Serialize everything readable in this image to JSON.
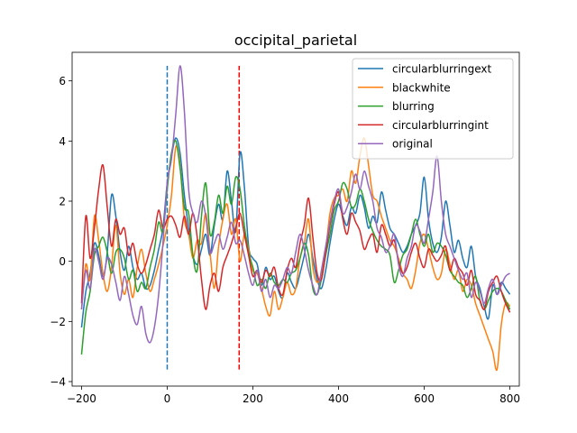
{
  "chart_data": {
    "type": "line",
    "title": "occipital_parietal",
    "xlabel": "",
    "ylabel": "",
    "xlim": [
      -222,
      822
    ],
    "ylim": [
      -4.15,
      6.95
    ],
    "xticks": [
      -200,
      0,
      200,
      400,
      600,
      800
    ],
    "yticks": [
      -4,
      -2,
      0,
      2,
      4,
      6
    ],
    "grid": false,
    "legend_position": "top-right",
    "vlines": [
      {
        "x": 0,
        "y0": -3.6,
        "y1": 6.5,
        "color": "#1f77b4",
        "style": "dashed"
      },
      {
        "x": 168,
        "y0": -3.6,
        "y1": 6.5,
        "color": "#ff0000",
        "style": "dashed"
      }
    ],
    "series": [
      {
        "name": "circularblurringext",
        "color": "#1f77b4",
        "x": [
          -200,
          -190,
          -180,
          -170,
          -160,
          -150,
          -140,
          -130,
          -120,
          -110,
          -100,
          -90,
          -80,
          -70,
          -60,
          -50,
          -40,
          -30,
          -20,
          -10,
          0,
          10,
          20,
          30,
          40,
          50,
          60,
          70,
          80,
          90,
          100,
          110,
          120,
          130,
          140,
          150,
          160,
          170,
          180,
          190,
          200,
          210,
          220,
          230,
          240,
          250,
          260,
          270,
          280,
          290,
          300,
          310,
          320,
          330,
          340,
          350,
          360,
          370,
          380,
          390,
          400,
          410,
          420,
          430,
          440,
          450,
          460,
          470,
          480,
          490,
          500,
          510,
          520,
          530,
          540,
          550,
          560,
          570,
          580,
          590,
          600,
          610,
          620,
          630,
          640,
          650,
          660,
          670,
          680,
          690,
          700,
          710,
          720,
          730,
          740,
          750,
          760,
          770,
          780,
          790,
          800
        ],
        "y": [
          -2.2,
          -1.0,
          -0.4,
          0.6,
          0.2,
          -0.5,
          0.3,
          2.2,
          1.5,
          0.3,
          -0.3,
          0.5,
          -0.2,
          -0.6,
          -0.4,
          -0.9,
          -0.8,
          -0.3,
          0.4,
          1.1,
          2.6,
          3.5,
          4.1,
          3.6,
          2.2,
          1.1,
          0.2,
          -0.1,
          0.4,
          0.9,
          0.2,
          1.2,
          1.9,
          1.4,
          3.0,
          2.0,
          1.0,
          3.6,
          2.5,
          0.5,
          0.1,
          -0.1,
          -0.8,
          -0.2,
          -0.6,
          -0.5,
          -1.0,
          -1.2,
          -0.4,
          -0.7,
          -0.9,
          -0.4,
          0.2,
          0.9,
          0.1,
          -0.6,
          -0.9,
          -0.3,
          0.6,
          1.4,
          1.9,
          1.5,
          1.2,
          1.8,
          1.6,
          2.2,
          1.8,
          1.1,
          1.5,
          1.3,
          2.3,
          1.7,
          1.1,
          0.9,
          0.6,
          0.3,
          0.5,
          0.9,
          1.2,
          1.6,
          2.8,
          1.4,
          0.6,
          0.3,
          0.8,
          2.0,
          1.2,
          0.3,
          0.7,
          0.1,
          -0.2,
          0.5,
          -0.5,
          -0.9,
          -1.5,
          -1.9,
          -0.8,
          -1.1,
          -0.7,
          -0.9,
          -1.1
        ]
      },
      {
        "name": "blackwhite",
        "color": "#ff7f0e",
        "x": [
          -200,
          -190,
          -180,
          -170,
          -160,
          -150,
          -140,
          -130,
          -120,
          -110,
          -100,
          -90,
          -80,
          -70,
          -60,
          -50,
          -40,
          -30,
          -20,
          -10,
          0,
          10,
          20,
          30,
          40,
          50,
          60,
          70,
          80,
          90,
          100,
          110,
          120,
          130,
          140,
          150,
          160,
          170,
          180,
          190,
          200,
          210,
          220,
          230,
          240,
          250,
          260,
          270,
          280,
          290,
          300,
          310,
          320,
          330,
          340,
          350,
          360,
          370,
          380,
          390,
          400,
          410,
          420,
          430,
          440,
          450,
          460,
          470,
          480,
          490,
          500,
          510,
          520,
          530,
          540,
          550,
          560,
          570,
          580,
          590,
          600,
          610,
          620,
          630,
          640,
          650,
          660,
          670,
          680,
          690,
          700,
          710,
          720,
          730,
          740,
          750,
          760,
          770,
          780,
          790,
          800
        ],
        "y": [
          -1.6,
          -0.1,
          -0.6,
          1.5,
          0.7,
          -0.4,
          -1.0,
          -0.2,
          1.2,
          -0.4,
          -1.1,
          -0.6,
          -1.2,
          -0.2,
          0.4,
          -0.4,
          -1.0,
          -0.6,
          -0.1,
          0.5,
          1.2,
          2.2,
          3.8,
          3.2,
          1.4,
          0.9,
          0.1,
          0.7,
          0.6,
          1.6,
          0.3,
          -0.9,
          0.5,
          1.4,
          1.9,
          0.9,
          1.4,
          0.0,
          0.9,
          0.4,
          -0.3,
          -0.4,
          -0.9,
          -1.5,
          -1.8,
          -1.0,
          -1.6,
          -1.2,
          -0.7,
          -1.1,
          -0.9,
          0.1,
          0.6,
          1.4,
          -0.2,
          -0.7,
          -0.4,
          0.4,
          1.6,
          2.1,
          2.2,
          2.4,
          2.0,
          3.0,
          2.6,
          3.5,
          4.1,
          3.2,
          2.2,
          2.0,
          1.5,
          1.1,
          0.7,
          0.5,
          0.1,
          -0.4,
          -0.6,
          -0.9,
          -0.3,
          0.6,
          0.9,
          0.4,
          -0.2,
          -0.6,
          -0.4,
          0.4,
          -0.1,
          -0.6,
          -0.3,
          -1.0,
          -0.6,
          -0.8,
          -1.4,
          -1.8,
          -2.2,
          -2.6,
          -3.0,
          -3.6,
          -2.1,
          -1.4,
          -1.5
        ]
      },
      {
        "name": "blurring",
        "color": "#2ca02c",
        "x": [
          -200,
          -190,
          -180,
          -170,
          -160,
          -150,
          -140,
          -130,
          -120,
          -110,
          -100,
          -90,
          -80,
          -70,
          -60,
          -50,
          -40,
          -30,
          -20,
          -10,
          0,
          10,
          20,
          30,
          40,
          50,
          60,
          70,
          80,
          90,
          100,
          110,
          120,
          130,
          140,
          150,
          160,
          170,
          180,
          190,
          200,
          210,
          220,
          230,
          240,
          250,
          260,
          270,
          280,
          290,
          300,
          310,
          320,
          330,
          340,
          350,
          360,
          370,
          380,
          390,
          400,
          410,
          420,
          430,
          440,
          450,
          460,
          470,
          480,
          490,
          500,
          510,
          520,
          530,
          540,
          550,
          560,
          570,
          580,
          590,
          600,
          610,
          620,
          630,
          640,
          650,
          660,
          670,
          680,
          690,
          700,
          710,
          720,
          730,
          740,
          750,
          760,
          770,
          780,
          790,
          800
        ],
        "y": [
          -3.1,
          -1.7,
          -1.0,
          0.2,
          0.5,
          0.8,
          0.3,
          -0.4,
          0.3,
          0.4,
          0.1,
          -0.6,
          -0.3,
          -1.0,
          -0.7,
          -0.9,
          -0.2,
          0.4,
          1.3,
          1.0,
          2.4,
          3.6,
          4.0,
          3.1,
          1.8,
          1.6,
          0.2,
          -0.3,
          1.5,
          2.6,
          0.9,
          1.3,
          2.2,
          1.6,
          2.5,
          1.9,
          2.8,
          2.4,
          1.2,
          0.3,
          -0.2,
          -0.8,
          -0.6,
          -0.9,
          -0.4,
          -0.7,
          -0.8,
          -0.6,
          -0.7,
          -0.4,
          -0.3,
          0.1,
          0.6,
          0.2,
          -0.9,
          -1.1,
          -0.6,
          0.2,
          0.9,
          1.7,
          2.0,
          2.6,
          2.4,
          1.8,
          1.9,
          2.4,
          2.0,
          1.4,
          1.0,
          0.7,
          0.5,
          0.4,
          0.2,
          -0.7,
          -0.3,
          0.2,
          0.4,
          0.9,
          1.4,
          0.9,
          0.5,
          0.9,
          0.3,
          0.6,
          0.5,
          0.2,
          -0.3,
          -0.5,
          -0.7,
          -0.8,
          -1.2,
          -0.9,
          -0.5,
          -1.3,
          -1.6,
          -1.3,
          -1.0,
          -0.9,
          -1.0,
          -1.3,
          -1.6
        ]
      },
      {
        "name": "circularblurringint",
        "color": "#d62728",
        "x": [
          -200,
          -190,
          -180,
          -170,
          -160,
          -150,
          -140,
          -130,
          -120,
          -110,
          -100,
          -90,
          -80,
          -70,
          -60,
          -50,
          -40,
          -30,
          -20,
          -10,
          0,
          10,
          20,
          30,
          40,
          50,
          60,
          70,
          80,
          90,
          100,
          110,
          120,
          130,
          140,
          150,
          160,
          170,
          180,
          190,
          200,
          210,
          220,
          230,
          240,
          250,
          260,
          270,
          280,
          290,
          300,
          310,
          320,
          330,
          340,
          350,
          360,
          370,
          380,
          390,
          400,
          410,
          420,
          430,
          440,
          450,
          460,
          470,
          480,
          490,
          500,
          510,
          520,
          530,
          540,
          550,
          560,
          570,
          580,
          590,
          600,
          610,
          620,
          630,
          640,
          650,
          660,
          670,
          680,
          690,
          700,
          710,
          720,
          730,
          740,
          750,
          760,
          770,
          780,
          790,
          800
        ],
        "y": [
          -1.4,
          1.5,
          0.1,
          1.1,
          2.4,
          3.2,
          1.8,
          0.5,
          1.4,
          0.9,
          1.1,
          0.2,
          0.6,
          -0.1,
          -0.4,
          -0.1,
          0.4,
          0.9,
          1.7,
          1.1,
          1.4,
          1.5,
          1.2,
          0.8,
          1.5,
          0.9,
          1.6,
          0.8,
          -0.6,
          -1.6,
          -0.8,
          -0.4,
          -1.0,
          -0.2,
          0.2,
          0.6,
          1.1,
          1.6,
          0.9,
          0.2,
          -0.5,
          -0.3,
          -0.7,
          -0.3,
          -0.5,
          -0.2,
          -0.9,
          -1.1,
          -0.3,
          0.1,
          -0.2,
          0.6,
          1.2,
          2.1,
          0.8,
          -0.4,
          -0.6,
          0.3,
          1.2,
          1.9,
          2.3,
          1.4,
          0.9,
          1.6,
          1.3,
          1.0,
          0.4,
          0.7,
          0.9,
          0.3,
          1.2,
          0.9,
          0.5,
          0.7,
          0.0,
          -0.4,
          -0.2,
          0.3,
          0.6,
          0.1,
          -0.2,
          0.4,
          0.2,
          0.0,
          0.2,
          0.5,
          -0.3,
          0.1,
          -0.2,
          -0.4,
          -0.8,
          -0.3,
          -1.1,
          -1.3,
          -1.6,
          -1.0,
          -0.7,
          -0.5,
          -1.0,
          -1.4,
          -1.7
        ]
      },
      {
        "name": "original",
        "color": "#9467bd",
        "x": [
          -200,
          -190,
          -180,
          -170,
          -160,
          -150,
          -140,
          -130,
          -120,
          -110,
          -100,
          -90,
          -80,
          -70,
          -60,
          -50,
          -40,
          -30,
          -20,
          -10,
          0,
          10,
          20,
          30,
          40,
          50,
          60,
          70,
          80,
          90,
          100,
          110,
          120,
          130,
          140,
          150,
          160,
          170,
          180,
          190,
          200,
          210,
          220,
          230,
          240,
          250,
          260,
          270,
          280,
          290,
          300,
          310,
          320,
          330,
          340,
          350,
          360,
          370,
          380,
          390,
          400,
          410,
          420,
          430,
          440,
          450,
          460,
          470,
          480,
          490,
          500,
          510,
          520,
          530,
          540,
          550,
          560,
          570,
          580,
          590,
          600,
          610,
          620,
          630,
          640,
          650,
          660,
          670,
          680,
          690,
          700,
          710,
          720,
          730,
          740,
          750,
          760,
          770,
          780,
          790,
          800
        ],
        "y": [
          -1.6,
          -0.3,
          -0.9,
          0.4,
          0.0,
          -0.6,
          0.1,
          -0.1,
          -0.7,
          -1.3,
          -0.5,
          -1.1,
          -1.8,
          -2.1,
          -1.5,
          -2.4,
          -2.7,
          -2.2,
          -1.1,
          0.6,
          2.6,
          3.4,
          4.9,
          6.5,
          5.0,
          2.4,
          1.6,
          1.3,
          2.0,
          1.5,
          0.3,
          0.6,
          0.9,
          0.4,
          0.8,
          1.3,
          0.6,
          0.7,
          0.2,
          -0.4,
          -0.8,
          -0.3,
          -1.0,
          -0.6,
          -1.2,
          -0.8,
          -0.9,
          -0.6,
          -0.2,
          -0.4,
          0.3,
          0.9,
          0.4,
          -0.3,
          -0.8,
          -1.1,
          -0.3,
          0.5,
          1.3,
          2.0,
          2.4,
          1.6,
          1.8,
          2.3,
          2.9,
          2.4,
          3.0,
          2.5,
          2.0,
          1.1,
          0.8,
          0.3,
          0.5,
          0.9,
          -0.1,
          -0.5,
          0.1,
          0.5,
          1.2,
          1.0,
          0.6,
          1.4,
          2.3,
          3.5,
          2.0,
          0.9,
          0.5,
          0.1,
          -0.3,
          -0.6,
          -0.4,
          -1.2,
          -0.7,
          -1.0,
          -1.4,
          -0.9,
          -0.6,
          -1.1,
          -0.8,
          -0.5,
          -0.4
        ]
      }
    ]
  }
}
